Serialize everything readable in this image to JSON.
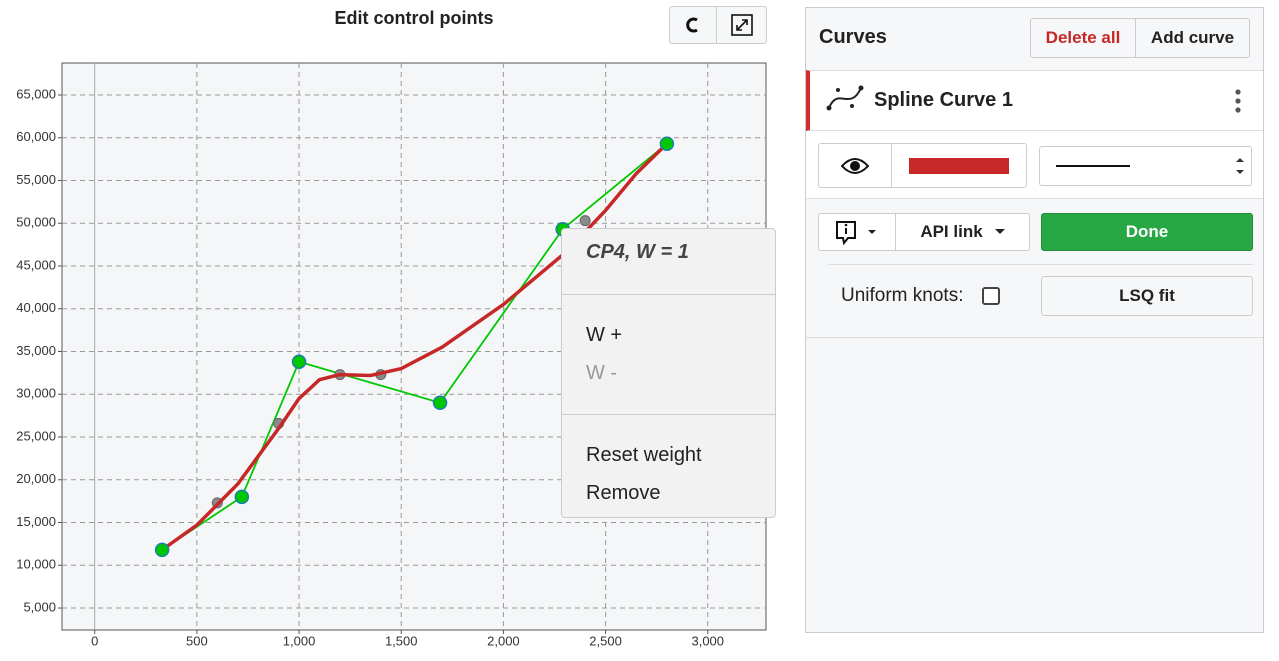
{
  "chart": {
    "type": "line",
    "title": "Edit control points",
    "xlim": [
      -160,
      3285
    ],
    "ylim": [
      2430,
      68740
    ],
    "xticks": [
      0,
      500,
      {
        "value": 1000,
        "label": "1,000"
      },
      {
        "value": 1500,
        "label": "1,500"
      },
      {
        "value": 2000,
        "label": "2,000"
      },
      {
        "value": 2500,
        "label": "2,500"
      },
      {
        "value": 3000,
        "label": "3,000"
      }
    ],
    "yticks": [
      {
        "value": 5000,
        "label": "5,000"
      },
      {
        "value": 10000,
        "label": "10,000"
      },
      {
        "value": 15000,
        "label": "15,000"
      },
      {
        "value": 20000,
        "label": "20,000"
      },
      {
        "value": 25000,
        "label": "25,000"
      },
      {
        "value": 30000,
        "label": "30,000"
      },
      {
        "value": 35000,
        "label": "35,000"
      },
      {
        "value": 40000,
        "label": "40,000"
      },
      {
        "value": 45000,
        "label": "45,000"
      },
      {
        "value": 50000,
        "label": "50,000"
      },
      {
        "value": 55000,
        "label": "55,000"
      },
      {
        "value": 60000,
        "label": "60,000"
      },
      {
        "value": 65000,
        "label": "65,000"
      }
    ],
    "grid": true,
    "control_points": {
      "color": "#00c800",
      "x": [
        330,
        720,
        1000,
        1690,
        2290,
        2800
      ],
      "y": [
        11800,
        18000,
        33800,
        29000,
        49300,
        59300
      ]
    },
    "knots": {
      "color": "#8a8a8a",
      "x": [
        600,
        900,
        1200,
        1400,
        2400
      ],
      "y": [
        17300,
        26600,
        32300,
        32300,
        50300
      ]
    },
    "curve": {
      "color": "#c62828",
      "x": [
        330,
        500,
        700,
        900,
        1000,
        1100,
        1200,
        1350,
        1500,
        1700,
        2000,
        2300,
        2500,
        2650,
        2800
      ],
      "y": [
        11800,
        14700,
        19500,
        26000,
        29500,
        31700,
        32300,
        32200,
        33000,
        35500,
        40500,
        46500,
        51500,
        55800,
        59300
      ]
    }
  },
  "context_menu": {
    "title": "CP4, W = 1",
    "items": [
      "W +",
      "W -",
      "Reset weight",
      "Remove"
    ]
  },
  "panel": {
    "title": "Curves",
    "buttons": [
      "Delete all",
      "Add curve"
    ],
    "curve_name": "Spline Curve 1",
    "api_link": "API link",
    "done": "Done",
    "uniform_knots": "Uniform knots:",
    "lsq_fit": "LSQ fit"
  }
}
